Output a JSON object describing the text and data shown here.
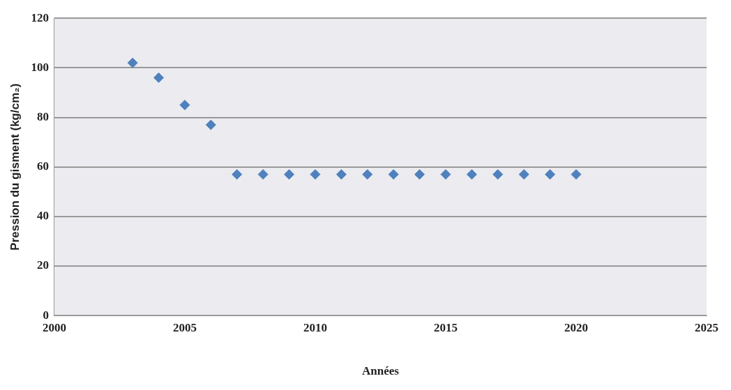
{
  "chart_data": {
    "type": "scatter",
    "xlabel": "Années",
    "ylabel": "Pression du gisment (kg/cm₂)",
    "x": [
      2003,
      2004,
      2005,
      2006,
      2007,
      2008,
      2009,
      2010,
      2011,
      2012,
      2013,
      2014,
      2015,
      2016,
      2017,
      2018,
      2019,
      2020
    ],
    "series": [
      {
        "color": "#4f81bd",
        "values": [
          102,
          96,
          85,
          77,
          57,
          57,
          57,
          57,
          57,
          57,
          57,
          57,
          57,
          57,
          57,
          57,
          57,
          57
        ]
      }
    ],
    "xlim": [
      2000,
      2025
    ],
    "xticks": [
      2000,
      2005,
      2010,
      2015,
      2020,
      2025
    ],
    "ylim": [
      0,
      120
    ],
    "yticks": [
      0,
      20,
      40,
      60,
      80,
      100,
      120
    ],
    "grid": "y",
    "marker": "diamond",
    "legend": false
  }
}
